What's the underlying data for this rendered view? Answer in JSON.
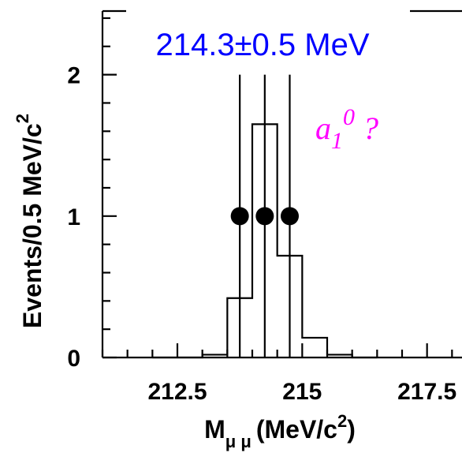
{
  "chart_data": {
    "type": "histogram",
    "title": "",
    "xlabel": "M",
    "xlabel_sub": "μ μ",
    "xlabel_units": "(MeV/c",
    "xlabel_units_sup": "2",
    "xlabel_units_close": ")",
    "ylabel": "Events/0.5 MeV/c",
    "ylabel_sup": "2",
    "xlim": [
      211.0,
      218.2
    ],
    "ylim": [
      0,
      2.45
    ],
    "x_ticks": [
      {
        "value": 212.5,
        "label": "212.5"
      },
      {
        "value": 215,
        "label": "215"
      },
      {
        "value": 217.5,
        "label": "217.5"
      }
    ],
    "y_ticks": [
      {
        "value": 0,
        "label": "0"
      },
      {
        "value": 1,
        "label": "1"
      },
      {
        "value": 2,
        "label": "2"
      }
    ],
    "histogram": {
      "bin_edges": [
        212.0,
        212.5,
        213.0,
        213.5,
        214.0,
        214.5,
        215.0,
        215.5,
        216.0,
        216.5
      ],
      "values": [
        0.0,
        0.0,
        0.02,
        0.42,
        1.65,
        0.72,
        0.14,
        0.02,
        0.0
      ]
    },
    "events": {
      "x": [
        213.75,
        214.25,
        214.75
      ],
      "y": [
        1,
        1,
        1
      ]
    },
    "vertical_lines": [
      213.75,
      214.25,
      214.75
    ],
    "annotations": [
      {
        "text": "214.3±0.5 MeV",
        "color": "#0000ff"
      },
      {
        "text": "a",
        "sub": "1",
        "sup": "0",
        "suffix": " ?",
        "color": "#ff00ff"
      }
    ],
    "grid": false,
    "legend": "none"
  }
}
